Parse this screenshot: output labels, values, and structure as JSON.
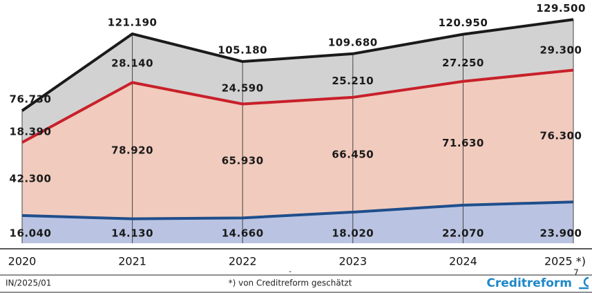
{
  "chart_data": {
    "type": "stacked_area",
    "categories": [
      "2020",
      "2021",
      "2022",
      "2023",
      "2024",
      "2025 *)"
    ],
    "series": [
      {
        "color": "#1f4e8c",
        "fill": "#bac4e2",
        "values": [
          16040,
          14130,
          14660,
          18020,
          22070,
          23900
        ],
        "value_labels": [
          "16.040",
          "14.130",
          "14.660",
          "18.020",
          "22.070",
          "23.900"
        ]
      },
      {
        "color": "#c8202a",
        "fill": "#f1cbbd",
        "values": [
          42300,
          78920,
          65930,
          66450,
          71630,
          76300
        ],
        "value_labels": [
          "42.300",
          "78.920",
          "65.930",
          "66.450",
          "71.630",
          "76.300"
        ]
      },
      {
        "color": "#1a1a1a",
        "fill": "#d2d2d2",
        "values": [
          18390,
          28140,
          24590,
          25210,
          27250,
          29300
        ],
        "value_labels": [
          "18.390",
          "28.140",
          "24.590",
          "25.210",
          "27.250",
          "29.300"
        ]
      }
    ],
    "totals": {
      "values": [
        76730,
        121190,
        105180,
        109680,
        120950,
        129500
      ],
      "value_labels": [
        "76.730",
        "121.190",
        "105.180",
        "109.680",
        "120.950",
        "129.500"
      ]
    },
    "ylim": [
      0,
      130000
    ]
  },
  "footer": {
    "left": "IN/2025/01",
    "center": "*) von Creditreform geschätzt",
    "mark": "-",
    "page": "7",
    "brand": "Creditreform"
  }
}
